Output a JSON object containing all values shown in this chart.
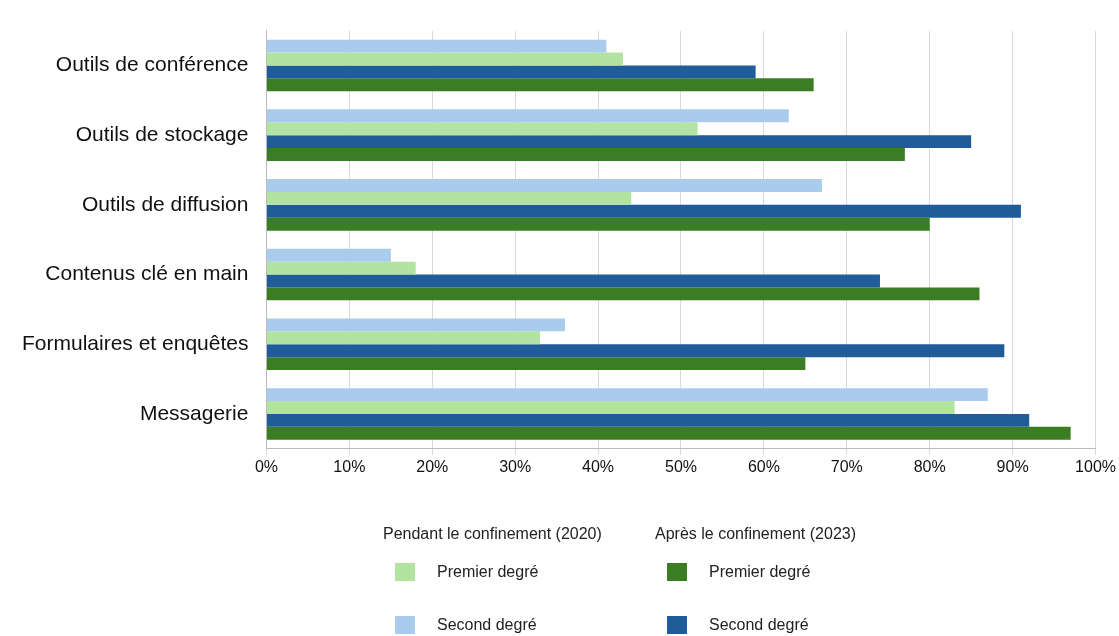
{
  "chart_data": {
    "type": "bar",
    "orientation": "horizontal",
    "categories": [
      "Outils de conférence",
      "Outils de stockage",
      "Outils de diffusion",
      "Contenus clé en main",
      "Formulaires et enquêtes",
      "Messagerie"
    ],
    "series": [
      {
        "name": "Second degré",
        "color": "#a9cbec",
        "values": [
          41,
          63,
          67,
          15,
          36,
          87
        ]
      },
      {
        "name": "Premier degré",
        "color": "#b3e3a0",
        "values": [
          43,
          52,
          44,
          18,
          33,
          83
        ]
      },
      {
        "name": "Second degré",
        "color": "#1f5c99",
        "values": [
          59,
          85,
          91,
          74,
          89,
          92
        ]
      },
      {
        "name": "Premier degré",
        "color": "#3a7d22",
        "values": [
          66,
          77,
          80,
          86,
          65,
          97
        ]
      }
    ],
    "xlim": [
      0,
      100
    ],
    "xticks": [
      {
        "value": 0,
        "label": "0%"
      },
      {
        "value": 10,
        "label": "10%"
      },
      {
        "value": 20,
        "label": "20%"
      },
      {
        "value": 30,
        "label": "30%"
      },
      {
        "value": 40,
        "label": "40%"
      },
      {
        "value": 50,
        "label": "50%"
      },
      {
        "value": 60,
        "label": "60%"
      },
      {
        "value": 70,
        "label": "70%"
      },
      {
        "value": 80,
        "label": "80%"
      },
      {
        "value": 90,
        "label": "90%"
      },
      {
        "value": 100,
        "label": "100%"
      }
    ],
    "grid": "x",
    "legend": "bottom",
    "annotations": [
      "Pendant le confinement (2020)",
      "Après le confinement (2023)"
    ]
  }
}
